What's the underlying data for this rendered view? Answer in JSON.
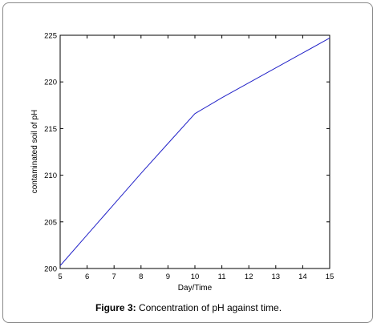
{
  "chart_data": {
    "type": "line",
    "title": "",
    "xlabel": "Day/Time",
    "ylabel": "contaminated soil of pH",
    "xlim": [
      5,
      15
    ],
    "ylim": [
      200,
      225
    ],
    "xticks": [
      5,
      6,
      7,
      8,
      9,
      10,
      11,
      12,
      13,
      14,
      15
    ],
    "yticks": [
      200,
      205,
      210,
      215,
      220,
      225
    ],
    "grid": false,
    "legend": "none",
    "series": [
      {
        "color": "#2323c8",
        "x": [
          5,
          6,
          7,
          8,
          9,
          10,
          11,
          12,
          13,
          14,
          15
        ],
        "y": [
          200.3,
          203.6,
          206.9,
          210.2,
          213.4,
          216.6,
          218.3,
          219.9,
          221.5,
          223.1,
          224.7
        ]
      }
    ]
  },
  "caption": {
    "label": "Figure 3:",
    "text": " Concentration of pH against time."
  }
}
